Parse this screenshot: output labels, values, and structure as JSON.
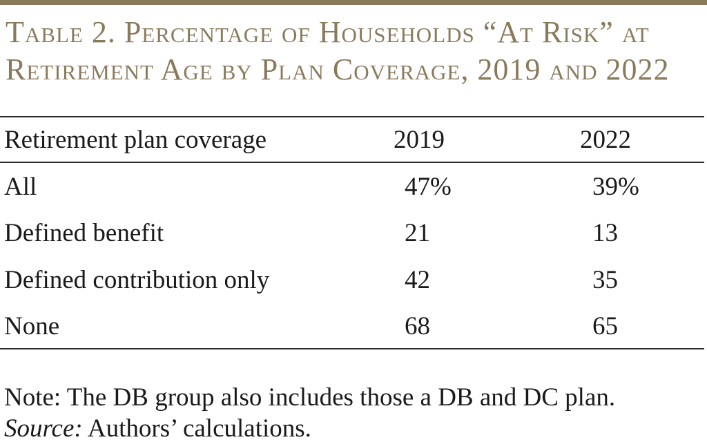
{
  "title": {
    "line1": "Table 2. Percentage of Households “At Risk” at",
    "line2": "Retirement Age by Plan Coverage, 2019 and 2022"
  },
  "table": {
    "headers": [
      "Retirement plan coverage",
      "2019",
      "2022"
    ],
    "rows": [
      {
        "label": "All",
        "y2019": "47%",
        "y2022": "39%"
      },
      {
        "label": "Defined benefit",
        "y2019": "21",
        "y2022": "13"
      },
      {
        "label": "Defined contribution only",
        "y2019": "42",
        "y2022": "35"
      },
      {
        "label": "None",
        "y2019": "68",
        "y2022": "65"
      }
    ]
  },
  "notes": {
    "note": "Note: The DB group also includes those a DB and DC plan.",
    "source_label": "Source:",
    "source_text": " Authors’ calculations."
  },
  "colors": {
    "accent": "#8a7a5c",
    "text": "#1a1a1a",
    "rule": "#2b2b2b"
  }
}
